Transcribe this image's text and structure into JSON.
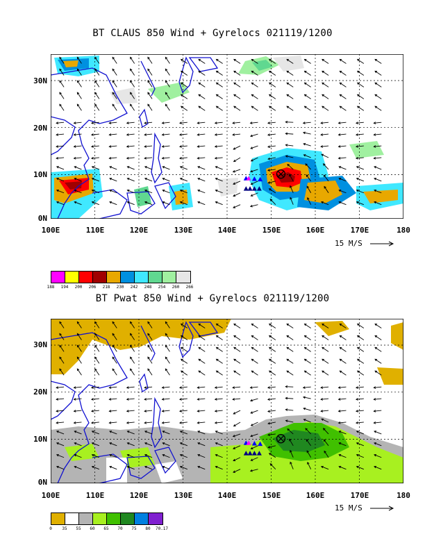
{
  "top_panel": {
    "title": "BT CLAUS 850 Wind + Gyrelocs 021119/1200",
    "colorbar_labels": [
      "188",
      "194",
      "200",
      "206",
      "218",
      "230",
      "242",
      "248",
      "254",
      "260",
      "266"
    ],
    "colorbar_colors": [
      "#ff00ff",
      "#ffff00",
      "#ff0000",
      "#a00000",
      "#e8a800",
      "#0090e0",
      "#40e8ff",
      "#60d890",
      "#a0f0a0",
      "#e6e6e6"
    ]
  },
  "bottom_panel": {
    "title": "BT Pwat 850 Wind + Gyrelocs 021119/1200",
    "colorbar_labels": [
      "0",
      "35",
      "55",
      "60",
      "65",
      "70",
      "75",
      "80",
      "70.17"
    ],
    "colorbar_colors": [
      "#e0b000",
      "#ffffff",
      "#b4b4b4",
      "#a8f020",
      "#40c000",
      "#208820",
      "#0080e0",
      "#8020d0"
    ]
  },
  "axes": {
    "x_ticks": [
      "100E",
      "110E",
      "120E",
      "130E",
      "140E",
      "150E",
      "160E",
      "170E",
      "180"
    ],
    "y_ticks": [
      "30N",
      "20N",
      "10N",
      "0N"
    ]
  },
  "wind_scale": {
    "label": "15 M/S"
  },
  "markers": {
    "storm_center_lon": 152.2,
    "storm_center_lat": 9.5,
    "gyre_triangles": [
      {
        "lon": 144.3,
        "lat": 8.6,
        "color": "#0000ff"
      },
      {
        "lon": 144.9,
        "lat": 8.6,
        "color": "#ff00ff"
      },
      {
        "lon": 146.2,
        "lat": 8.5,
        "color": "#0000ff"
      },
      {
        "lon": 147.5,
        "lat": 8.4,
        "color": "#0000ff"
      },
      {
        "lon": 144.3,
        "lat": 6.4,
        "color": "#000080"
      },
      {
        "lon": 145.2,
        "lat": 6.4,
        "color": "#000080"
      },
      {
        "lon": 146.2,
        "lat": 6.4,
        "color": "#000080"
      },
      {
        "lon": 147.3,
        "lat": 6.4,
        "color": "#000080"
      }
    ]
  },
  "map_extent": {
    "lon_min": 100,
    "lon_max": 180,
    "lat_min": 0,
    "lat_max": 35
  }
}
